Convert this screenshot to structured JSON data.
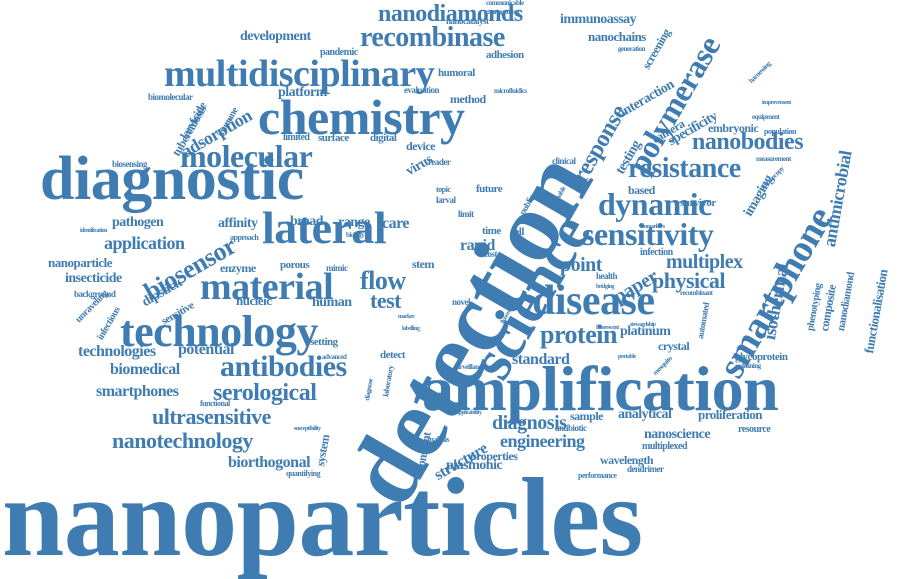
{
  "colors": {
    "word": "#3f7cb1",
    "background": "#ffffff"
  },
  "words": [
    "nanoparticles",
    "detection",
    "amplification",
    "diagnostic",
    "chemistry",
    "multidisciplinary",
    "lateral",
    "science",
    "technology",
    "material",
    "disease",
    "smartphone",
    "molecular",
    "sensitivity",
    "recombinase",
    "nanodiamonds",
    "polymerase",
    "dynamic",
    "resistance",
    "nanobodies",
    "antibodies",
    "biosensor",
    "response",
    "serological",
    "protein",
    "nanotechnology",
    "ultrasensitive",
    "application",
    "flow",
    "test",
    "physical",
    "point",
    "multiplex",
    "paper",
    "isothermal",
    "antimicrobial",
    "diagnosis",
    "engineering",
    "structure",
    "potential",
    "technologies",
    "biomedical",
    "smartphones",
    "biorthogonal",
    "standard",
    "adsorption",
    "platform",
    "development",
    "nanoscience",
    "analytical",
    "proliferation",
    "plasmonic",
    "nanoparticle",
    "insecticide",
    "dipstick",
    "pathogen",
    "affinity",
    "enzyme",
    "nucleic",
    "human",
    "care",
    "rapid",
    "range",
    "broad",
    "device",
    "surface",
    "digital",
    "limited",
    "virus",
    "method",
    "humoral",
    "adhesion",
    "pandemic",
    "immunoassay",
    "nanocatalyst",
    "nanochains",
    "screening",
    "interaction",
    "specificity",
    "camera",
    "testing",
    "imaging",
    "embryonic",
    "based",
    "survivor",
    "infection",
    "crystal",
    "platinum",
    "composite",
    "functionalisation",
    "nanodiamond",
    "glycoprotein",
    "resource",
    "sample",
    "wavelength",
    "properties",
    "multiplexed",
    "dendrimer",
    "performance",
    "constant",
    "detect",
    "setting",
    "porous",
    "stem",
    "mimic",
    "time",
    "future",
    "cell",
    "immune",
    "larvicide",
    "tuberculosis",
    "biomolecular",
    "biosensing",
    "antibiotic",
    "quantifying",
    "system",
    "sensitive",
    "unraveling",
    "background",
    "infectious",
    "communicable",
    "management",
    "generation",
    "evaluation",
    "microfluidics",
    "clinical",
    "population",
    "equipment",
    "improvement",
    "harnessing",
    "measurement",
    "microscopy",
    "phenotyping",
    "recombinant",
    "automated",
    "redefining",
    "stewardship",
    "fluorescent",
    "analysis",
    "functional",
    "advanced",
    "surveillance",
    "susceptibility",
    "limit",
    "novel",
    "reader",
    "larval",
    "topic",
    "public",
    "fluorescence",
    "applicability",
    "laboratory",
    "portable",
    "biomarkers",
    "mosquito",
    "diagnose",
    "cost",
    "health",
    "bridging",
    "identification",
    "approach",
    "biology",
    "marker",
    "capacity",
    "labelling",
    "tunable"
  ]
}
